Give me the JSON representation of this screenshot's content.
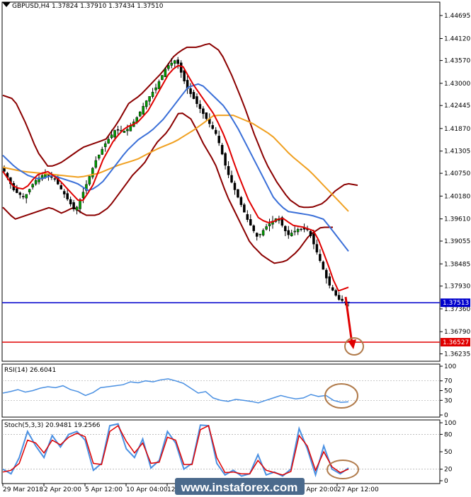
{
  "chart_data": [
    {
      "type": "candlestick",
      "title": "GBPUSD,H4  1.37824 1.37910 1.37434 1.37510",
      "y_ticks": [
        "1.44695",
        "1.44120",
        "1.43570",
        "1.43000",
        "1.42445",
        "1.41870",
        "1.41305",
        "1.40750",
        "1.40180",
        "1.39610",
        "1.39055",
        "1.38485",
        "1.37930",
        "1.37360",
        "1.36790",
        "1.36235"
      ],
      "ylim": [
        1.3605,
        1.4503
      ],
      "x_ticks": [
        "29 Mar 2018",
        "2 Apr 20:00",
        "5 Apr 12:00",
        "10 Apr 04:00",
        "12",
        "24 Apr 20:00",
        "27 Apr 12:00"
      ],
      "price_levels": [
        {
          "value": 1.37513,
          "label": "1.37513",
          "color": "#0000cc"
        },
        {
          "value": 1.36527,
          "label": "1.36527",
          "color": "#e00000"
        }
      ],
      "close_anchors": [
        1.408,
        1.403,
        1.4015,
        1.4055,
        1.4075,
        1.406,
        1.402,
        1.398,
        1.404,
        1.4105,
        1.415,
        1.4185,
        1.418,
        1.421,
        1.4255,
        1.429,
        1.434,
        1.436,
        1.429,
        1.425,
        1.421,
        1.417,
        1.408,
        1.402,
        1.396,
        1.3915,
        1.3945,
        1.3965,
        1.392,
        1.3935,
        1.3935,
        1.387,
        1.38,
        1.376,
        1.3751
      ],
      "bollinger_upper_anchors": [
        1.427,
        1.426,
        1.42,
        1.413,
        1.409,
        1.41,
        1.412,
        1.414,
        1.415,
        1.416,
        1.42,
        1.425,
        1.427,
        1.43,
        1.433,
        1.437,
        1.439,
        1.439,
        1.44,
        1.438,
        1.432,
        1.425,
        1.417,
        1.41,
        1.405,
        1.401,
        1.399,
        1.399,
        1.4,
        1.403,
        1.405,
        1.4045
      ],
      "bollinger_lower_anchors": [
        1.399,
        1.396,
        1.397,
        1.398,
        1.399,
        1.3975,
        1.399,
        1.397,
        1.397,
        1.399,
        1.403,
        1.407,
        1.41,
        1.415,
        1.418,
        1.423,
        1.421,
        1.415,
        1.41,
        1.402,
        1.396,
        1.39,
        1.387,
        1.385,
        1.3855,
        1.388,
        1.392,
        1.394,
        1.394
      ],
      "ma_red_anchors": [
        1.408,
        1.404,
        1.4035,
        1.407,
        1.408,
        1.406,
        1.403,
        1.4,
        1.404,
        1.411,
        1.416,
        1.419,
        1.42,
        1.423,
        1.428,
        1.433,
        1.435,
        1.43,
        1.426,
        1.422,
        1.416,
        1.408,
        1.401,
        1.396,
        1.395,
        1.3965,
        1.3945,
        1.394,
        1.393,
        1.386,
        1.378,
        1.379
      ],
      "ma_blue_anchors": [
        1.412,
        1.409,
        1.407,
        1.406,
        1.407,
        1.406,
        1.405,
        1.403,
        1.405,
        1.409,
        1.413,
        1.416,
        1.418,
        1.421,
        1.425,
        1.429,
        1.43,
        1.427,
        1.424,
        1.419,
        1.413,
        1.407,
        1.401,
        1.398,
        1.3975,
        1.397,
        1.396,
        1.392,
        1.388
      ],
      "ma_orange_anchors": [
        1.409,
        1.408,
        1.4075,
        1.407,
        1.4065,
        1.4075,
        1.4095,
        1.411,
        1.4135,
        1.4155,
        1.4185,
        1.422,
        1.422,
        1.42,
        1.417,
        1.412,
        1.408,
        1.403,
        1.398
      ],
      "annotations": [
        "arrow-down-red",
        "circle-brown"
      ]
    },
    {
      "type": "line",
      "title": "RSI(14) 26.6041",
      "y_ticks": [
        "100",
        "70",
        "50",
        "30",
        "0"
      ],
      "ylim": [
        0,
        100
      ],
      "values": [
        45,
        48,
        52,
        47,
        50,
        55,
        58,
        56,
        60,
        52,
        48,
        40,
        46,
        56,
        58,
        60,
        62,
        68,
        66,
        70,
        68,
        72,
        74,
        70,
        65,
        55,
        45,
        48,
        35,
        30,
        28,
        32,
        30,
        28,
        25,
        30,
        35,
        40,
        36,
        33,
        35,
        42,
        38,
        40,
        30,
        26,
        27
      ],
      "annotations": [
        "circle-brown"
      ]
    },
    {
      "type": "line",
      "title": "Stoch(5,3,3) 20.9481 19.2566",
      "y_ticks": [
        "100",
        "80",
        "50",
        "20",
        "0"
      ],
      "ylim": [
        0,
        100
      ],
      "series": [
        {
          "values": [
            20,
            12,
            40,
            85,
            60,
            40,
            78,
            58,
            80,
            85,
            70,
            18,
            30,
            95,
            98,
            55,
            40,
            72,
            22,
            35,
            85,
            65,
            20,
            30,
            96,
            95,
            30,
            10,
            18,
            8,
            12,
            45,
            10,
            15,
            8,
            20,
            90,
            55,
            10,
            60,
            20,
            12,
            22
          ],
          "color": "#4a90e2"
        },
        {
          "values": [
            15,
            18,
            30,
            70,
            65,
            48,
            70,
            62,
            75,
            82,
            76,
            30,
            28,
            85,
            95,
            68,
            48,
            65,
            30,
            32,
            75,
            70,
            28,
            28,
            88,
            95,
            40,
            14,
            15,
            12,
            12,
            35,
            18,
            14,
            10,
            16,
            78,
            60,
            18,
            50,
            24,
            14,
            20
          ],
          "color": "#e00000"
        }
      ],
      "annotations": [
        "circle-brown"
      ]
    }
  ],
  "watermark": "www.instaforex.com"
}
